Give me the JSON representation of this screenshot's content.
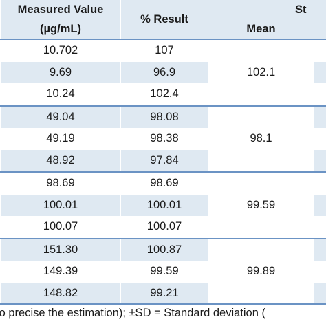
{
  "table": {
    "header": {
      "measured_value_line1": "Measured Value",
      "measured_value_line2": "(µg/mL)",
      "result": "% Result",
      "statistics_partial": "St",
      "mean": "Mean"
    },
    "groups": [
      {
        "rows": [
          {
            "measured": "10.702",
            "result": "107"
          },
          {
            "measured": "9.69",
            "result": "96.9"
          },
          {
            "measured": "10.24",
            "result": "102.4"
          }
        ],
        "mean": "102.1"
      },
      {
        "rows": [
          {
            "measured": "49.04",
            "result": "98.08"
          },
          {
            "measured": "49.19",
            "result": "98.38"
          },
          {
            "measured": "48.92",
            "result": "97.84"
          }
        ],
        "mean": "98.1"
      },
      {
        "rows": [
          {
            "measured": "98.69",
            "result": "98.69"
          },
          {
            "measured": "100.01",
            "result": "100.01"
          },
          {
            "measured": "100.07",
            "result": "100.07"
          }
        ],
        "mean": "99.59"
      },
      {
        "rows": [
          {
            "measured": "151.30",
            "result": "100.87"
          },
          {
            "measured": "149.39",
            "result": "99.59"
          },
          {
            "measured": "148.82",
            "result": "99.21"
          }
        ],
        "mean": "99.89"
      }
    ]
  },
  "footnote": "to precise the estimation); ±SD = Standard deviation (",
  "colors": {
    "header_fill": "#dfe9f2",
    "row_band": "#dfe9f2",
    "rule_line": "#6b93c4"
  }
}
